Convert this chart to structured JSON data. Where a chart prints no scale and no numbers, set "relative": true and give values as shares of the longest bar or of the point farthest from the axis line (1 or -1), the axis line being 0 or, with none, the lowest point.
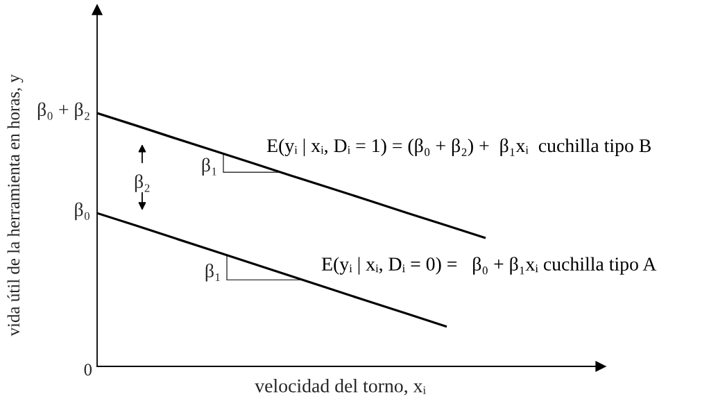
{
  "chart_data": {
    "type": "line",
    "relative": true,
    "xlabel": "velocidad del torno, xᵢ",
    "ylabel": "vida útil de la herramienta en horas, y",
    "categories": [
      null,
      null,
      null,
      null,
      null,
      null,
      null,
      null,
      null,
      null,
      null
    ],
    "series": [
      {
        "name": "E(yᵢ | xᵢ, Dᵢ = 1) = (β₀ + β₂) +  β₁xᵢ  cuchilla tipo B",
        "color": "#000000",
        "values": [
          1,
          0.951,
          0.901,
          0.852,
          0.803,
          0.753,
          0.704,
          0.655,
          0.605,
          0.556,
          0.507
        ]
      },
      {
        "name": "E(yᵢ | xᵢ, Dᵢ = 0) =   β₀ + β₁xᵢ cuchilla tipo A",
        "color": "#000000",
        "values": [
          0.605,
          0.556,
          0.506,
          0.456,
          0.406,
          0.356,
          0.306,
          0.256,
          0.207,
          0.157,
          null
        ]
      }
    ],
    "annotations": [
      "β₀ + β₂",
      "β₀",
      "0",
      "β₂",
      "β₁",
      "β₁"
    ]
  }
}
